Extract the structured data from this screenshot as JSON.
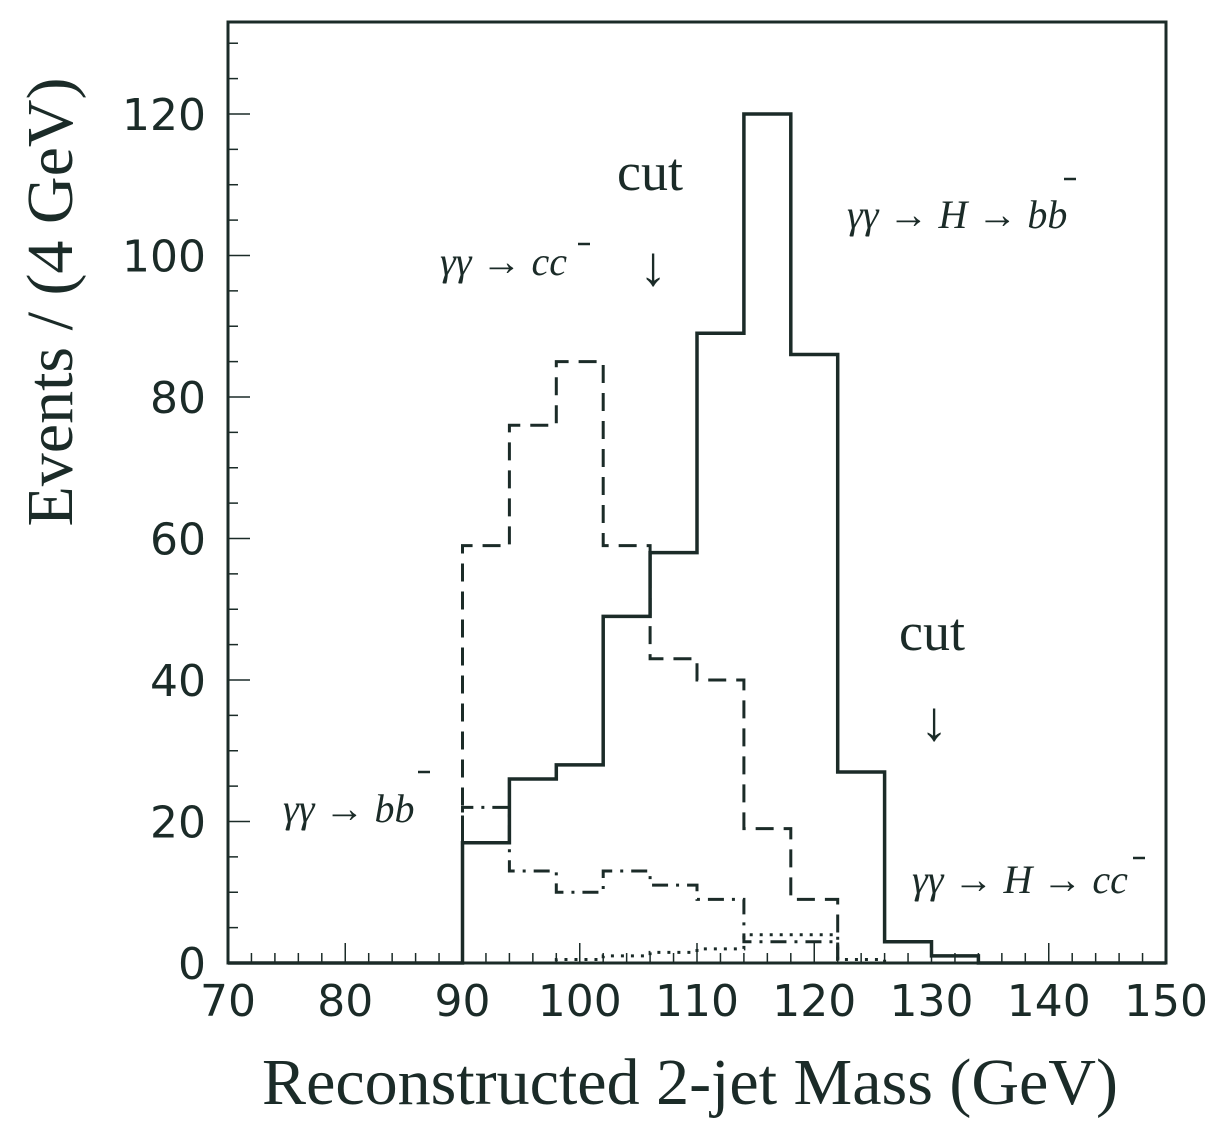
{
  "chart_data": {
    "type": "histogram",
    "xlabel": "Reconstructed 2-jet Mass (GeV)",
    "ylabel": "Events / (4 GeV)",
    "xlim": [
      70,
      150
    ],
    "ylim": [
      0,
      133
    ],
    "x_ticks": [
      70,
      80,
      90,
      100,
      110,
      120,
      130,
      140,
      150
    ],
    "y_ticks": [
      0,
      20,
      40,
      60,
      80,
      100,
      120
    ],
    "bin_width": 4,
    "series": [
      {
        "name": "γγ → H → bb̄",
        "style": "solid",
        "bins": [
          [
            70,
            90,
            0
          ],
          [
            90,
            94,
            17
          ],
          [
            94,
            98,
            26
          ],
          [
            98,
            102,
            28
          ],
          [
            102,
            106,
            49
          ],
          [
            106,
            110,
            58
          ],
          [
            110,
            114,
            89
          ],
          [
            114,
            118,
            120
          ],
          [
            118,
            122,
            86
          ],
          [
            122,
            126,
            27
          ],
          [
            126,
            130,
            3
          ],
          [
            130,
            134,
            1
          ],
          [
            134,
            150,
            0
          ]
        ]
      },
      {
        "name": "γγ → cc̄",
        "style": "dashed",
        "bins": [
          [
            70,
            90,
            0
          ],
          [
            90,
            94,
            59
          ],
          [
            94,
            98,
            76
          ],
          [
            98,
            102,
            85
          ],
          [
            102,
            106,
            59
          ],
          [
            106,
            110,
            43
          ],
          [
            110,
            114,
            40
          ],
          [
            114,
            118,
            19
          ],
          [
            118,
            122,
            9
          ],
          [
            122,
            126,
            0
          ],
          [
            126,
            150,
            0
          ]
        ]
      },
      {
        "name": "γγ → bb̄",
        "style": "dashdot",
        "bins": [
          [
            70,
            90,
            0
          ],
          [
            90,
            94,
            22
          ],
          [
            94,
            98,
            13
          ],
          [
            98,
            102,
            10
          ],
          [
            102,
            106,
            13
          ],
          [
            106,
            110,
            11
          ],
          [
            110,
            114,
            9
          ],
          [
            114,
            118,
            3
          ],
          [
            118,
            122,
            3
          ],
          [
            122,
            150,
            0
          ]
        ]
      },
      {
        "name": "γγ → H → cc̄",
        "style": "dotted",
        "bins": [
          [
            70,
            98,
            0
          ],
          [
            98,
            102,
            0.5
          ],
          [
            102,
            106,
            1
          ],
          [
            106,
            110,
            1.5
          ],
          [
            110,
            114,
            2
          ],
          [
            114,
            118,
            4
          ],
          [
            118,
            122,
            4
          ],
          [
            122,
            126,
            0.5
          ],
          [
            126,
            150,
            0
          ]
        ]
      }
    ],
    "annotations": [
      {
        "text": "cut",
        "x": 105,
        "y": 112,
        "arrow": true
      },
      {
        "text": "cut",
        "x": 129,
        "y": 45,
        "arrow": true
      }
    ]
  },
  "labels": {
    "cut_left": "cut",
    "cut_right": "cut",
    "arrow": "↓",
    "signal_bb": "γγ → H → bb",
    "bkg_cc": "γγ → cc",
    "bkg_bb": "γγ → bb",
    "signal_cc": "γγ → H → cc"
  }
}
